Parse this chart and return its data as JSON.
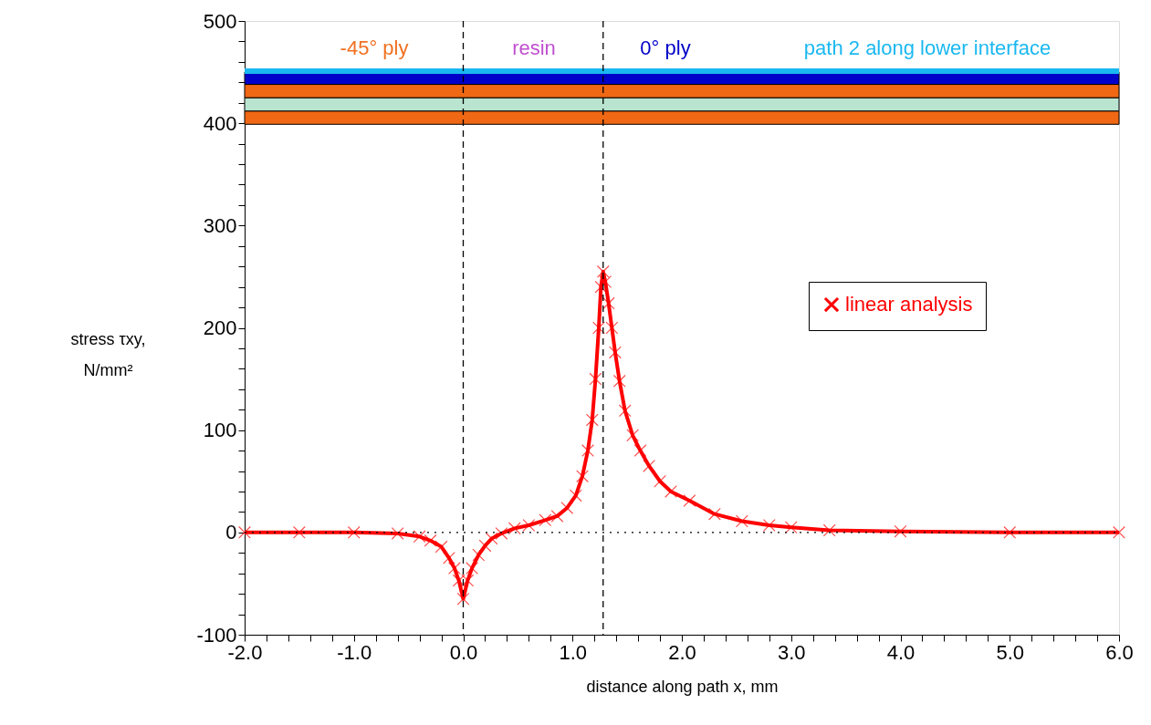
{
  "chart_data": {
    "type": "line",
    "xlabel": "distance along path x, mm",
    "ylabel": "stress τxy, N/mm²",
    "x": [
      -2,
      -1.5,
      -1,
      -0.6,
      -0.4,
      -0.3,
      -0.2,
      -0.13,
      -0.08,
      -0.04,
      0,
      0.04,
      0.08,
      0.14,
      0.2,
      0.26,
      0.35,
      0.47,
      0.6,
      0.75,
      0.86,
      0.95,
      1.03,
      1.09,
      1.14,
      1.18,
      1.21,
      1.24,
      1.26,
      1.28,
      1.3,
      1.33,
      1.36,
      1.39,
      1.43,
      1.48,
      1.55,
      1.62,
      1.7,
      1.8,
      1.9,
      2.07,
      2.3,
      2.55,
      2.8,
      3.0,
      3.35,
      4,
      5,
      6
    ],
    "series": [
      {
        "name": "linear analysis",
        "color": "#ff0000",
        "values": [
          0,
          0,
          0,
          -1,
          -4,
          -8,
          -14,
          -25,
          -35,
          -47,
          -65,
          -47,
          -35,
          -22,
          -13,
          -6,
          -1,
          4,
          7,
          12,
          16,
          24,
          36,
          55,
          80,
          110,
          150,
          200,
          240,
          255,
          245,
          224,
          200,
          176,
          148,
          119,
          95,
          80,
          65,
          50,
          40,
          31,
          18,
          11,
          7,
          5,
          2,
          1,
          0,
          0
        ]
      }
    ],
    "marker": "cross",
    "line_style": "solid",
    "legend": "right",
    "grid": false,
    "xlim": [
      -2,
      6
    ],
    "ylim": [
      -100,
      500
    ],
    "xticks": [
      {
        "value": -2,
        "label": "-2.0"
      },
      {
        "value": -1.8,
        "label": null
      },
      {
        "value": -1.6,
        "label": null
      },
      {
        "value": -1.4,
        "label": null
      },
      {
        "value": -1.2,
        "label": null
      },
      {
        "value": -1,
        "label": "-1.0"
      },
      {
        "value": -0.8,
        "label": null
      },
      {
        "value": -0.6,
        "label": null
      },
      {
        "value": -0.4,
        "label": null
      },
      {
        "value": -0.2,
        "label": null
      },
      {
        "value": 0,
        "label": "0.0"
      },
      {
        "value": 0.2,
        "label": null
      },
      {
        "value": 0.4,
        "label": null
      },
      {
        "value": 0.6,
        "label": null
      },
      {
        "value": 0.8,
        "label": null
      },
      {
        "value": 1,
        "label": "1.0"
      },
      {
        "value": 1.2,
        "label": null
      },
      {
        "value": 1.4,
        "label": null
      },
      {
        "value": 1.6,
        "label": null
      },
      {
        "value": 1.8,
        "label": null
      },
      {
        "value": 2,
        "label": "2.0"
      },
      {
        "value": 2.2,
        "label": null
      },
      {
        "value": 2.4,
        "label": null
      },
      {
        "value": 2.6,
        "label": null
      },
      {
        "value": 2.8,
        "label": null
      },
      {
        "value": 3,
        "label": "3.0"
      },
      {
        "value": 3.2,
        "label": null
      },
      {
        "value": 3.4,
        "label": null
      },
      {
        "value": 3.6,
        "label": null
      },
      {
        "value": 3.8,
        "label": null
      },
      {
        "value": 4,
        "label": "4.0"
      },
      {
        "value": 4.2,
        "label": null
      },
      {
        "value": 4.4,
        "label": null
      },
      {
        "value": 4.6,
        "label": null
      },
      {
        "value": 4.8,
        "label": null
      },
      {
        "value": 5,
        "label": "5.0"
      },
      {
        "value": 5.2,
        "label": null
      },
      {
        "value": 5.4,
        "label": null
      },
      {
        "value": 5.6,
        "label": null
      },
      {
        "value": 5.8,
        "label": null
      },
      {
        "value": 6,
        "label": "6.0"
      }
    ],
    "yticks": [
      -100,
      {
        "value": -80,
        "label": null
      },
      {
        "value": -60,
        "label": null
      },
      {
        "value": -40,
        "label": null
      },
      {
        "value": -20,
        "label": null
      },
      0,
      {
        "value": 20,
        "label": null
      },
      {
        "value": 40,
        "label": null
      },
      {
        "value": 60,
        "label": null
      },
      {
        "value": 80,
        "label": null
      },
      100,
      {
        "value": 120,
        "label": null
      },
      {
        "value": 140,
        "label": null
      },
      {
        "value": 160,
        "label": null
      },
      {
        "value": 180,
        "label": null
      },
      200,
      {
        "value": 220,
        "label": null
      },
      {
        "value": 240,
        "label": null
      },
      {
        "value": 260,
        "label": null
      },
      {
        "value": 280,
        "label": null
      },
      300,
      {
        "value": 320,
        "label": null
      },
      {
        "value": 340,
        "label": null
      },
      {
        "value": 360,
        "label": null
      },
      {
        "value": 380,
        "label": null
      },
      400,
      {
        "value": 420,
        "label": null
      },
      {
        "value": 440,
        "label": null
      },
      {
        "value": 460,
        "label": null
      },
      {
        "value": 480,
        "label": null
      },
      500
    ],
    "bands": [
      {
        "axis": "y",
        "from": 399,
        "to": 412,
        "color": "#f06814"
      },
      {
        "axis": "y",
        "from": 412,
        "to": 425,
        "color": "#b8e4d0"
      },
      {
        "axis": "y",
        "from": 425,
        "to": 438,
        "color": "#f06814"
      },
      {
        "axis": "y",
        "from": 438,
        "to": 450,
        "color": "#0000c8"
      }
    ],
    "ref_lines": [
      {
        "axis": "y",
        "value": 451,
        "color": "#1ab8f0",
        "line_style": "solid"
      },
      {
        "axis": "x",
        "value": 0,
        "color": "#000000",
        "line_style": "dashed"
      },
      {
        "axis": "x",
        "value": 1.28,
        "color": "#000000",
        "line_style": "dashed"
      },
      {
        "axis": "y",
        "value": 0,
        "color": "#000000",
        "line_style": "dotted"
      }
    ],
    "annotations": [
      "-45° ply",
      "resin",
      "0° ply",
      "path 2 along lower interface"
    ]
  }
}
